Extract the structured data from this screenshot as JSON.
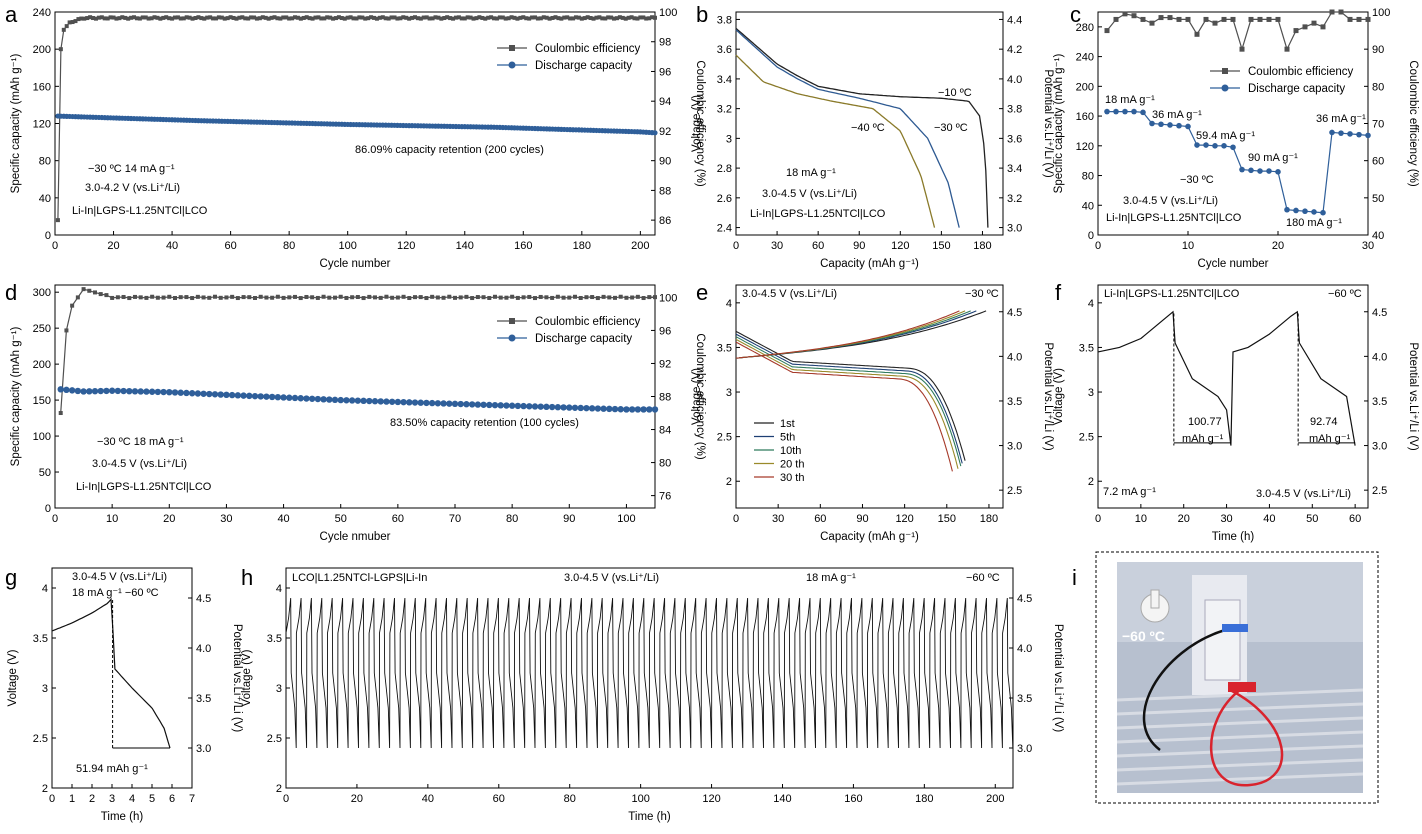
{
  "panels": {
    "a": {
      "label": "a",
      "type": "line",
      "xlabel": "Cycle number",
      "ylabel": "Specific capacity (mAh g⁻¹)",
      "y2label": "Coulombic efficiency (%)",
      "xlim": [
        0,
        205
      ],
      "ylim": [
        0,
        240
      ],
      "y2lim": [
        85,
        100
      ],
      "xticks": [
        0,
        20,
        40,
        60,
        80,
        100,
        120,
        140,
        160,
        180,
        200
      ],
      "yticks": [
        0,
        40,
        80,
        120,
        160,
        200,
        240
      ],
      "y2ticks": [
        86,
        88,
        90,
        92,
        94,
        96,
        98,
        100
      ],
      "legend": [
        "Coulombic efficiency",
        "Discharge capacity"
      ],
      "annotations": [
        "−30 ºC   14 mA g⁻¹",
        "3.0-4.2 V (vs.Li⁺/Li)",
        "Li-In|LGPS-L1.25NTCl|LCO",
        "86.09% capacity retention (200 cycles)"
      ]
    },
    "b": {
      "label": "b",
      "xlabel": "Capacity (mAh g⁻¹)",
      "ylabel": "Voltage (V)",
      "y2label": "Potential vs.Li⁺/Li (V)",
      "xlim": [
        0,
        195
      ],
      "ylim": [
        2.35,
        3.85
      ],
      "y2lim": [
        2.95,
        4.45
      ],
      "xticks": [
        0,
        30,
        60,
        90,
        120,
        150,
        180
      ],
      "yticks": [
        2.4,
        2.6,
        2.8,
        3.0,
        3.2,
        3.4,
        3.6,
        3.8
      ],
      "y2ticks": [
        3.0,
        3.2,
        3.4,
        3.6,
        3.8,
        4.0,
        4.2,
        4.4
      ],
      "curve_labels": [
        "−10 ºC",
        "−30 ºC",
        "−40 ºC"
      ],
      "annotations": [
        "18 mA g⁻¹",
        "3.0-4.5 V  (vs.Li⁺/Li)",
        "Li-In|LGPS-L1.25NTCl|LCO"
      ]
    },
    "c": {
      "label": "c",
      "xlabel": "Cycle number",
      "ylabel": "Specific capacity (mAh g⁻¹)",
      "y2label": "Coulombic efficiency (%)",
      "xlim": [
        0,
        30
      ],
      "ylim": [
        0,
        300
      ],
      "y2lim": [
        40,
        100
      ],
      "xticks": [
        0,
        10,
        20,
        30
      ],
      "yticks": [
        0,
        40,
        80,
        120,
        160,
        200,
        240,
        280
      ],
      "y2ticks": [
        40,
        50,
        60,
        70,
        80,
        90,
        100
      ],
      "legend": [
        "Coulombic efficiency",
        "Discharge capacity"
      ],
      "rate_labels": [
        "18 mA g⁻¹",
        "36 mA g⁻¹",
        "59.4 mA g⁻¹",
        "90 mA g⁻¹",
        "180 mA g⁻¹",
        "36 mA g⁻¹"
      ],
      "annotations": [
        "−30 ºC",
        "3.0-4.5 V (vs.Li⁺/Li)",
        "Li-In|LGPS-L1.25NTCl|LCO"
      ]
    },
    "d": {
      "label": "d",
      "xlabel": "Cycle nmuber",
      "ylabel": "Specific capacity (mAh g⁻¹)",
      "y2label": "Coulombic efficiency (%)",
      "xlim": [
        0,
        105
      ],
      "ylim": [
        0,
        310
      ],
      "y2lim": [
        74.5,
        101.5
      ],
      "xticks": [
        0,
        10,
        20,
        30,
        40,
        50,
        60,
        70,
        80,
        90,
        100
      ],
      "yticks": [
        0,
        50,
        100,
        150,
        200,
        250,
        300
      ],
      "y2ticks": [
        76,
        80,
        84,
        88,
        92,
        96,
        100
      ],
      "legend": [
        "Coulombic efficiency",
        "Discharge capacity"
      ],
      "annotations": [
        "−30 ºC   18 mA g⁻¹",
        "3.0-4.5 V (vs.Li⁺/Li)",
        "Li-In|LGPS-L1.25NTCl|LCO",
        "83.50% capacity retention (100 cycles)"
      ]
    },
    "e": {
      "label": "e",
      "xlabel": "Capacity (mAh g⁻¹)",
      "ylabel": "Voltage (V)",
      "y2label": "Potential vs.Li⁺/Li (V)",
      "xlim": [
        0,
        190
      ],
      "ylim": [
        1.7,
        4.2
      ],
      "y2lim": [
        2.3,
        4.8
      ],
      "xticks": [
        0,
        30,
        60,
        90,
        120,
        150,
        180
      ],
      "yticks": [
        2.0,
        2.5,
        3.0,
        3.5,
        4.0
      ],
      "y2ticks": [
        2.5,
        3.0,
        3.5,
        4.0,
        4.5
      ],
      "legend": [
        "1st",
        "5th",
        "10th",
        "20 th",
        "30 th"
      ],
      "annotations": [
        "3.0-4.5 V (vs.Li⁺/Li)",
        "−30 ºC"
      ]
    },
    "f": {
      "label": "f",
      "xlabel": "Time (h)",
      "ylabel": "Voltage (V)",
      "y2label": "Potential vs.Li⁺/Li (V)",
      "xlim": [
        0,
        63
      ],
      "ylim": [
        1.7,
        4.2
      ],
      "y2lim": [
        2.3,
        4.8
      ],
      "xticks": [
        0,
        10,
        20,
        30,
        40,
        50,
        60
      ],
      "yticks": [
        2.0,
        2.5,
        3.0,
        3.5,
        4.0
      ],
      "y2ticks": [
        2.5,
        3.0,
        3.5,
        4.0,
        4.5
      ],
      "annotations": [
        "Li-In|LGPS-L1.25NTCl|LCO",
        "−60 ºC",
        "100.77",
        "mAh g⁻¹",
        "92.74",
        "mAh g⁻¹",
        "7.2 mA g⁻¹",
        "3.0-4.5 V (vs.Li⁺/Li)"
      ]
    },
    "g": {
      "label": "g",
      "xlabel": "Time (h)",
      "ylabel": "Voltage (V)",
      "y2label": "Potential vs.Li⁺/Li (V)",
      "xlim": [
        0,
        7
      ],
      "ylim": [
        2.0,
        4.2
      ],
      "y2lim": [
        2.6,
        4.8
      ],
      "xticks": [
        0,
        1,
        2,
        3,
        4,
        5,
        6,
        7
      ],
      "yticks": [
        2.0,
        2.5,
        3.0,
        3.5,
        4.0
      ],
      "y2ticks": [
        3.0,
        3.5,
        4.0,
        4.5
      ],
      "annotations": [
        "3.0-4.5 V (vs.Li⁺/Li)",
        "18 mA g⁻¹  −60 ºC",
        "51.94 mAh g⁻¹"
      ]
    },
    "h": {
      "label": "h",
      "xlabel": "Time (h)",
      "ylabel": "Voltage (V)",
      "y2label": "Potential vs.Li⁺/Li (V)",
      "xlim": [
        0,
        205
      ],
      "ylim": [
        2.0,
        4.2
      ],
      "y2lim": [
        2.6,
        4.8
      ],
      "xticks": [
        0,
        20,
        40,
        60,
        80,
        100,
        120,
        140,
        160,
        180,
        200
      ],
      "yticks": [
        2.0,
        2.5,
        3.0,
        3.5,
        4.0
      ],
      "y2ticks": [
        3.0,
        3.5,
        4.0,
        4.5
      ],
      "annotations": [
        "LCO|L1.25NTCl-LGPS|Li-In",
        "3.0-4.5 V (vs.Li⁺/Li)",
        "18 mA g⁻¹",
        "−60 ºC"
      ]
    },
    "i": {
      "label": "i",
      "annotations": [
        "−60 ºC"
      ]
    }
  },
  "chart_data": [
    {
      "panel": "a",
      "type": "line",
      "series": [
        {
          "name": "Coulombic efficiency",
          "axis": "right",
          "x": [
            1,
            2,
            3,
            5,
            10,
            20,
            50,
            100,
            150,
            200,
            205
          ],
          "values": [
            86,
            97.5,
            98.8,
            99.3,
            99.6,
            99.6,
            99.6,
            99.6,
            99.6,
            99.6,
            99.6
          ]
        },
        {
          "name": "Discharge capacity",
          "axis": "left",
          "x": [
            1,
            20,
            50,
            100,
            150,
            200,
            205
          ],
          "values": [
            128,
            126,
            123,
            119,
            116,
            111,
            110
          ]
        }
      ]
    },
    {
      "panel": "b",
      "type": "line",
      "series": [
        {
          "name": "−10 ºC",
          "x": [
            0,
            30,
            45,
            60,
            90,
            120,
            150,
            170,
            178,
            182,
            184
          ],
          "values": [
            3.74,
            3.5,
            3.42,
            3.35,
            3.3,
            3.28,
            3.27,
            3.25,
            3.15,
            2.9,
            2.4
          ]
        },
        {
          "name": "−30 ºC",
          "x": [
            0,
            30,
            45,
            60,
            90,
            120,
            140,
            155,
            163
          ],
          "values": [
            3.73,
            3.48,
            3.4,
            3.33,
            3.27,
            3.2,
            3.0,
            2.7,
            2.4
          ]
        },
        {
          "name": "−40 ºC",
          "x": [
            0,
            20,
            45,
            70,
            100,
            120,
            135,
            145
          ],
          "values": [
            3.56,
            3.38,
            3.3,
            3.25,
            3.2,
            3.05,
            2.75,
            2.4
          ]
        }
      ]
    },
    {
      "panel": "c",
      "type": "line",
      "series": [
        {
          "name": "Coulombic efficiency",
          "axis": "right",
          "x": [
            1,
            2,
            3,
            4,
            5,
            6,
            7,
            8,
            9,
            10,
            11,
            12,
            13,
            14,
            15,
            16,
            17,
            18,
            19,
            20,
            21,
            22,
            23,
            24,
            25,
            26,
            27,
            28,
            29,
            30
          ],
          "values": [
            95,
            98,
            99.5,
            99,
            98,
            97,
            98.5,
            98.5,
            98,
            98,
            94,
            98,
            97,
            98,
            98,
            90,
            98,
            98,
            98,
            98,
            90,
            95,
            96,
            97,
            96,
            100,
            100,
            98,
            98,
            98
          ]
        },
        {
          "name": "Discharge capacity",
          "axis": "left",
          "x": [
            1,
            2,
            3,
            4,
            5,
            6,
            7,
            8,
            9,
            10,
            11,
            12,
            13,
            14,
            15,
            16,
            17,
            18,
            19,
            20,
            21,
            22,
            23,
            24,
            25,
            26,
            27,
            28,
            29,
            30
          ],
          "values": [
            166,
            166,
            166,
            166,
            165,
            150,
            149,
            148,
            147,
            146,
            121,
            121,
            120,
            120,
            118,
            88,
            87,
            86,
            86,
            85,
            34,
            33,
            32,
            31,
            30,
            138,
            137,
            136,
            135,
            134
          ]
        }
      ]
    },
    {
      "panel": "d",
      "type": "line",
      "series": [
        {
          "name": "Coulombic efficiency",
          "axis": "right",
          "x": [
            1,
            2,
            3,
            5,
            10,
            20,
            50,
            100,
            105
          ],
          "values": [
            86,
            96,
            99,
            101,
            100,
            100,
            100,
            100,
            100
          ]
        },
        {
          "name": "Discharge capacity",
          "axis": "left",
          "x": [
            1,
            5,
            10,
            20,
            50,
            100,
            105
          ],
          "values": [
            165,
            162,
            163,
            161,
            150,
            137,
            137
          ]
        }
      ]
    },
    {
      "panel": "e",
      "type": "line",
      "series": [
        {
          "name": "1st"
        },
        {
          "name": "5th"
        },
        {
          "name": "10th"
        },
        {
          "name": "20 th"
        },
        {
          "name": "30 th"
        }
      ]
    },
    {
      "panel": "f",
      "type": "line",
      "series": [
        {
          "name": "voltage",
          "x": [
            0,
            5,
            10,
            15,
            17.5,
            18,
            22,
            28,
            30,
            31,
            31.5,
            35,
            40,
            45,
            46.5,
            47,
            52,
            58,
            60
          ],
          "values": [
            3.45,
            3.5,
            3.6,
            3.8,
            3.9,
            3.55,
            3.15,
            2.95,
            2.8,
            2.4,
            3.45,
            3.5,
            3.65,
            3.85,
            3.9,
            3.55,
            3.15,
            2.95,
            2.4
          ]
        }
      ]
    },
    {
      "panel": "g",
      "type": "line",
      "series": [
        {
          "name": "voltage",
          "x": [
            0,
            1,
            2,
            2.8,
            3,
            3.1,
            4,
            5,
            5.6,
            5.9
          ],
          "values": [
            3.57,
            3.65,
            3.75,
            3.85,
            3.9,
            3.2,
            3.0,
            2.8,
            2.6,
            2.4
          ]
        }
      ]
    },
    {
      "panel": "h",
      "type": "line",
      "series": [
        {
          "name": "voltage"
        }
      ]
    }
  ]
}
